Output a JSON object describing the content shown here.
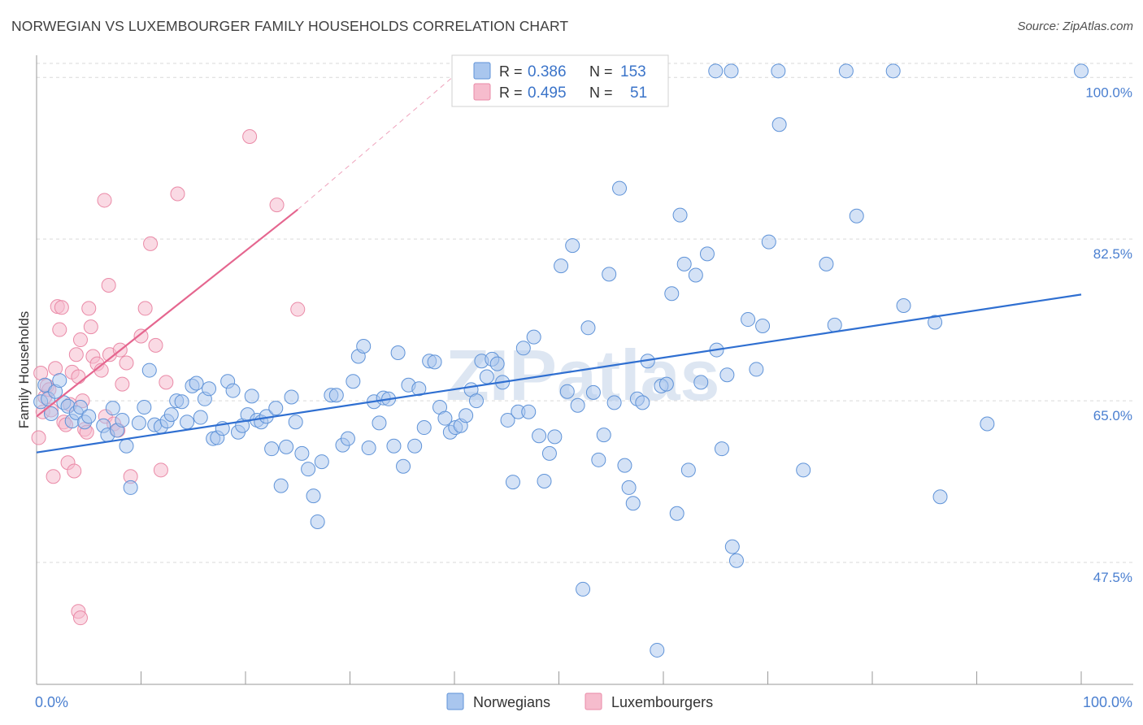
{
  "title": "NORWEGIAN VS LUXEMBOURGER FAMILY HOUSEHOLDS CORRELATION CHART",
  "source": "Source: ZipAtlas.com",
  "watermark": "ZIPatlas",
  "colors": {
    "norwegians_fill": "#a9c6ee",
    "norwegians_stroke": "#5f93d8",
    "norwegians_line": "#2f6fd1",
    "luxembourgers_fill": "#f6bccd",
    "luxembourgers_stroke": "#ea8aa7",
    "luxembourgers_line": "#e5668f",
    "tick_label": "#4a7fd0",
    "grid": "#d9d9d9"
  },
  "legend": {
    "rows": [
      {
        "r_label": "R =",
        "r_value": "0.386",
        "n_label": "N =",
        "n_value": "153"
      },
      {
        "r_label": "R =",
        "r_value": "0.495",
        "n_label": "N =",
        "n_value": "51"
      }
    ]
  },
  "bottom_legend": [
    "Norwegians",
    "Luxembourgers"
  ],
  "chart_data": {
    "type": "scatter",
    "title": "NORWEGIAN VS LUXEMBOURGER FAMILY HOUSEHOLDS CORRELATION CHART",
    "xlabel": "",
    "ylabel": "Family Households",
    "xlim": [
      0,
      100
    ],
    "ylim": [
      34.3,
      102.4
    ],
    "x_tick_labels": [
      "0.0%",
      "100.0%"
    ],
    "y_ticks": [
      47.5,
      65.0,
      82.5,
      100.0
    ],
    "y_tick_labels": [
      "47.5%",
      "65.0%",
      "82.5%",
      "100.0%"
    ],
    "grid": "horizontal dashed",
    "legend_position": "top-center",
    "series": [
      {
        "name": "Norwegians",
        "r": 0.386,
        "n": 153,
        "trend": {
          "x": [
            0,
            100
          ],
          "y": [
            59.4,
            76.5
          ]
        },
        "points": [
          [
            0.4,
            64.9
          ],
          [
            0.8,
            66.7
          ],
          [
            1.1,
            65.2
          ],
          [
            1.4,
            63.6
          ],
          [
            1.8,
            66.0
          ],
          [
            2.2,
            67.2
          ],
          [
            2.6,
            64.8
          ],
          [
            3.0,
            64.4
          ],
          [
            3.4,
            62.8
          ],
          [
            3.8,
            63.7
          ],
          [
            4.2,
            64.3
          ],
          [
            4.6,
            62.7
          ],
          [
            5.0,
            63.3
          ],
          [
            6.4,
            62.3
          ],
          [
            6.8,
            61.3
          ],
          [
            7.3,
            64.2
          ],
          [
            7.7,
            61.8
          ],
          [
            8.2,
            62.9
          ],
          [
            8.6,
            60.1
          ],
          [
            9.0,
            55.6
          ],
          [
            9.8,
            62.6
          ],
          [
            10.3,
            64.3
          ],
          [
            10.8,
            68.3
          ],
          [
            11.3,
            62.4
          ],
          [
            11.9,
            62.2
          ],
          [
            12.5,
            62.8
          ],
          [
            12.9,
            63.5
          ],
          [
            13.4,
            65.0
          ],
          [
            13.9,
            64.9
          ],
          [
            14.4,
            62.7
          ],
          [
            14.9,
            66.6
          ],
          [
            15.3,
            66.9
          ],
          [
            15.7,
            63.2
          ],
          [
            16.1,
            65.2
          ],
          [
            16.5,
            66.3
          ],
          [
            16.9,
            60.9
          ],
          [
            17.3,
            61.0
          ],
          [
            17.8,
            62.0
          ],
          [
            18.3,
            67.1
          ],
          [
            18.8,
            66.1
          ],
          [
            19.3,
            61.6
          ],
          [
            19.7,
            62.3
          ],
          [
            20.2,
            63.5
          ],
          [
            20.6,
            65.5
          ],
          [
            21.1,
            62.9
          ],
          [
            21.5,
            62.7
          ],
          [
            22.0,
            63.3
          ],
          [
            22.5,
            59.8
          ],
          [
            22.9,
            64.2
          ],
          [
            23.4,
            55.8
          ],
          [
            23.9,
            60.0
          ],
          [
            24.4,
            65.4
          ],
          [
            24.8,
            62.7
          ],
          [
            25.4,
            59.3
          ],
          [
            26.0,
            57.6
          ],
          [
            26.5,
            54.7
          ],
          [
            26.9,
            51.9
          ],
          [
            27.3,
            58.4
          ],
          [
            28.2,
            65.6
          ],
          [
            28.7,
            65.6
          ],
          [
            29.3,
            60.2
          ],
          [
            29.8,
            60.9
          ],
          [
            30.3,
            67.1
          ],
          [
            30.8,
            69.8
          ],
          [
            31.3,
            70.9
          ],
          [
            31.8,
            59.9
          ],
          [
            32.3,
            64.9
          ],
          [
            32.8,
            62.6
          ],
          [
            33.2,
            65.3
          ],
          [
            33.7,
            65.2
          ],
          [
            34.2,
            60.1
          ],
          [
            34.6,
            70.2
          ],
          [
            35.1,
            57.9
          ],
          [
            35.6,
            66.7
          ],
          [
            36.2,
            60.1
          ],
          [
            36.6,
            66.3
          ],
          [
            37.1,
            62.1
          ],
          [
            37.6,
            69.3
          ],
          [
            38.1,
            69.2
          ],
          [
            38.6,
            64.3
          ],
          [
            39.1,
            63.1
          ],
          [
            39.6,
            61.6
          ],
          [
            40.1,
            62.1
          ],
          [
            40.6,
            62.3
          ],
          [
            41.1,
            63.4
          ],
          [
            41.6,
            66.2
          ],
          [
            42.1,
            65.0
          ],
          [
            42.6,
            69.3
          ],
          [
            43.1,
            67.6
          ],
          [
            43.6,
            69.5
          ],
          [
            44.1,
            69.0
          ],
          [
            44.6,
            67.0
          ],
          [
            45.1,
            62.9
          ],
          [
            45.6,
            56.2
          ],
          [
            46.1,
            63.8
          ],
          [
            46.6,
            70.7
          ],
          [
            47.1,
            63.8
          ],
          [
            47.6,
            71.9
          ],
          [
            48.1,
            61.2
          ],
          [
            48.6,
            56.3
          ],
          [
            49.1,
            59.3
          ],
          [
            49.6,
            61.1
          ],
          [
            50.2,
            79.6
          ],
          [
            50.8,
            66.0
          ],
          [
            51.3,
            81.8
          ],
          [
            51.8,
            64.5
          ],
          [
            52.3,
            44.6
          ],
          [
            52.8,
            72.9
          ],
          [
            53.3,
            65.9
          ],
          [
            53.8,
            58.6
          ],
          [
            54.3,
            61.3
          ],
          [
            54.8,
            78.7
          ],
          [
            55.3,
            64.8
          ],
          [
            55.8,
            88.0
          ],
          [
            56.3,
            58.0
          ],
          [
            56.7,
            55.6
          ],
          [
            57.1,
            53.9
          ],
          [
            57.5,
            65.2
          ],
          [
            58.0,
            64.8
          ],
          [
            58.5,
            69.3
          ],
          [
            59.4,
            38.0
          ],
          [
            59.8,
            66.6
          ],
          [
            60.3,
            66.8
          ],
          [
            60.8,
            76.6
          ],
          [
            61.3,
            52.8
          ],
          [
            61.6,
            85.1
          ],
          [
            62.0,
            79.8
          ],
          [
            62.4,
            57.5
          ],
          [
            63.1,
            78.6
          ],
          [
            63.6,
            67.0
          ],
          [
            64.2,
            80.9
          ],
          [
            65.1,
            70.5
          ],
          [
            65.6,
            59.8
          ],
          [
            66.1,
            67.8
          ],
          [
            66.6,
            49.2
          ],
          [
            67.0,
            47.7
          ],
          [
            68.1,
            73.8
          ],
          [
            68.9,
            68.4
          ],
          [
            69.5,
            73.1
          ],
          [
            70.1,
            82.2
          ],
          [
            71.1,
            94.9
          ],
          [
            73.4,
            57.5
          ],
          [
            75.6,
            79.8
          ],
          [
            76.4,
            73.2
          ],
          [
            78.5,
            85.0
          ],
          [
            83.0,
            75.3
          ],
          [
            86.0,
            73.5
          ],
          [
            86.5,
            54.6
          ],
          [
            91.0,
            62.5
          ],
          [
            65.0,
            100.7
          ],
          [
            66.5,
            100.7
          ],
          [
            71.0,
            100.7
          ],
          [
            77.5,
            100.7
          ],
          [
            82.0,
            100.7
          ],
          [
            100.0,
            100.7
          ]
        ]
      },
      {
        "name": "Luxembourgers",
        "r": 0.495,
        "n": 51,
        "trend": {
          "x": [
            0,
            25
          ],
          "y": [
            63.3,
            85.7
          ]
        },
        "trend_extension": {
          "x": [
            25,
            40
          ],
          "y": [
            85.7,
            100.2
          ]
        },
        "points": [
          [
            0.2,
            61.0
          ],
          [
            0.4,
            68.0
          ],
          [
            0.6,
            63.8
          ],
          [
            0.8,
            65.4
          ],
          [
            1.0,
            66.6
          ],
          [
            1.2,
            66.2
          ],
          [
            1.4,
            64.0
          ],
          [
            1.6,
            56.8
          ],
          [
            1.8,
            68.5
          ],
          [
            2.0,
            75.2
          ],
          [
            2.2,
            72.7
          ],
          [
            2.4,
            75.1
          ],
          [
            2.6,
            62.7
          ],
          [
            2.8,
            62.4
          ],
          [
            3.0,
            58.3
          ],
          [
            3.2,
            64.6
          ],
          [
            3.4,
            68.1
          ],
          [
            3.6,
            57.4
          ],
          [
            3.8,
            70.0
          ],
          [
            4.0,
            67.6
          ],
          [
            4.2,
            71.6
          ],
          [
            4.4,
            65.0
          ],
          [
            4.6,
            61.9
          ],
          [
            4.8,
            61.6
          ],
          [
            5.0,
            75.0
          ],
          [
            5.2,
            73.0
          ],
          [
            5.4,
            69.8
          ],
          [
            5.8,
            69.0
          ],
          [
            6.2,
            68.3
          ],
          [
            6.6,
            63.3
          ],
          [
            7.0,
            70.0
          ],
          [
            7.4,
            62.5
          ],
          [
            7.8,
            61.8
          ],
          [
            8.2,
            66.8
          ],
          [
            8.6,
            69.1
          ],
          [
            9.0,
            56.8
          ],
          [
            10.0,
            72.0
          ],
          [
            10.4,
            75.0
          ],
          [
            10.9,
            82.0
          ],
          [
            11.4,
            71.0
          ],
          [
            11.9,
            57.5
          ],
          [
            12.4,
            67.0
          ],
          [
            13.5,
            87.4
          ],
          [
            6.5,
            86.7
          ],
          [
            6.9,
            77.5
          ],
          [
            8.0,
            70.5
          ],
          [
            20.4,
            93.6
          ],
          [
            23.0,
            86.2
          ],
          [
            25.0,
            74.9
          ],
          [
            4.0,
            42.2
          ],
          [
            4.2,
            41.5
          ]
        ]
      }
    ]
  }
}
